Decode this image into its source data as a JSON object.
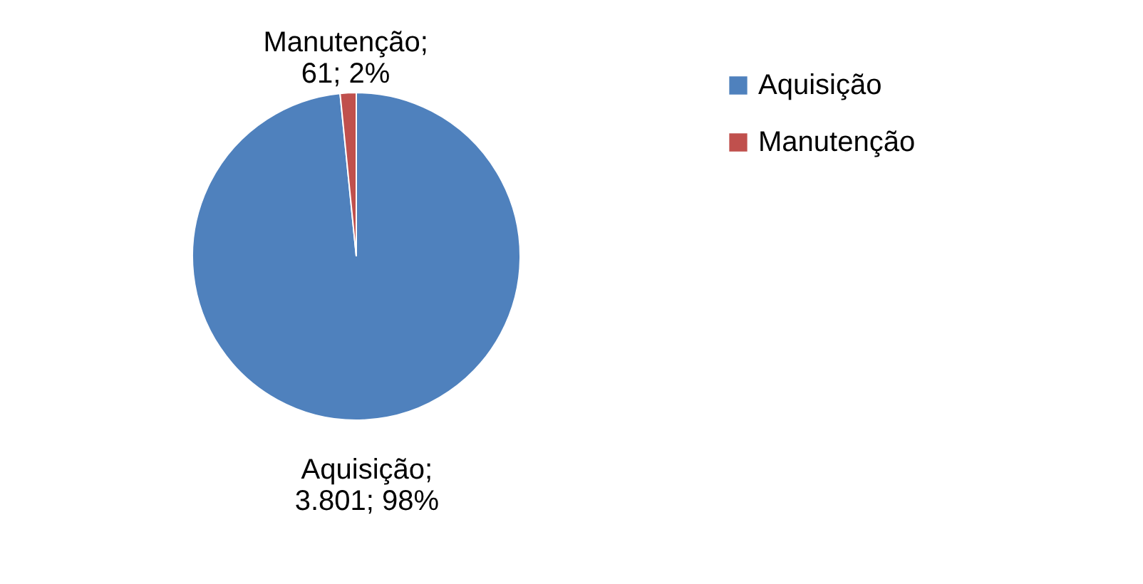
{
  "chart_data": {
    "type": "pie",
    "categories": [
      "Aquisição",
      "Manutenção"
    ],
    "values": [
      3801,
      61
    ],
    "colors": [
      "#4f81bd",
      "#c0504d"
    ],
    "value_labels": [
      "Aquisição; 3.801; 98%",
      "Manutenção; 61; 2%"
    ],
    "legend": "right"
  }
}
